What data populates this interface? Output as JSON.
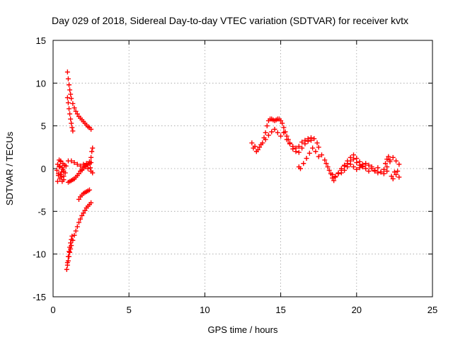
{
  "chart_data": {
    "type": "scatter",
    "title": "Day 029 of 2018, Sidereal Day-to-day VTEC variation (SDTVAR) for receiver kvtx",
    "xlabel": "GPS time / hours",
    "ylabel": "SDTVAR / TECUs",
    "xlim": [
      0,
      25
    ],
    "ylim": [
      -15,
      15
    ],
    "xticks": [
      0,
      5,
      10,
      15,
      20,
      25
    ],
    "yticks": [
      -15,
      -10,
      -5,
      0,
      5,
      10,
      15
    ],
    "grid": true,
    "marker": "plus",
    "series_color": "#ff0000",
    "series": [
      {
        "x": [
          0.25,
          0.3,
          0.35,
          0.4,
          0.45,
          0.5,
          0.55,
          0.6,
          0.65,
          0.7,
          0.35,
          0.45,
          0.55,
          0.65,
          0.75,
          0.4,
          0.5,
          0.6,
          0.7,
          0.8,
          0.85,
          0.3,
          0.5,
          0.7
        ],
        "y": [
          -0.2,
          0.5,
          -0.8,
          0.2,
          -1.2,
          0.8,
          -0.4,
          -1.5,
          0.6,
          -0.3,
          -0.6,
          0.3,
          -1.0,
          -0.1,
          0.4,
          1.0,
          -0.7,
          0.1,
          -1.3,
          -0.5,
          0.3,
          -1.5,
          0.9,
          -0.9
        ]
      },
      {
        "x": [
          0.95,
          1.0,
          1.05,
          1.1,
          1.15,
          1.2,
          1.3,
          1.4,
          1.5,
          1.6,
          1.7,
          1.8,
          1.9,
          2.0,
          2.1,
          2.2,
          2.3,
          2.4,
          2.5
        ],
        "y": [
          11.3,
          10.5,
          9.8,
          9.2,
          8.7,
          8.2,
          7.6,
          7.1,
          6.7,
          6.4,
          6.1,
          5.9,
          5.7,
          5.5,
          5.3,
          5.1,
          4.9,
          4.8,
          4.6
        ]
      },
      {
        "x": [
          0.95,
          1.0,
          1.05,
          1.1,
          1.15,
          1.2,
          1.25,
          1.3
        ],
        "y": [
          8.3,
          7.7,
          7.0,
          6.4,
          5.8,
          5.3,
          4.8,
          4.4
        ]
      },
      {
        "x": [
          1.0,
          1.1,
          1.2,
          1.3,
          1.4,
          1.5,
          1.6,
          1.7,
          1.8,
          1.9,
          2.0,
          2.1,
          2.2,
          2.3,
          2.4,
          2.5
        ],
        "y": [
          -1.6,
          -1.5,
          -1.4,
          -1.3,
          -1.2,
          -1.0,
          -0.8,
          -0.6,
          -0.3,
          -0.1,
          0.1,
          0.3,
          0.4,
          0.5,
          0.6,
          0.7
        ]
      },
      {
        "x": [
          1.0,
          1.2,
          1.4,
          1.6,
          1.8,
          2.0,
          2.2,
          2.4,
          2.5,
          2.55,
          2.6,
          2.45,
          2.5,
          2.6,
          1.9,
          2.1,
          2.3
        ],
        "y": [
          0.9,
          0.9,
          0.7,
          0.5,
          0.3,
          0.5,
          0.6,
          0.8,
          1.3,
          2.0,
          2.4,
          0.1,
          -0.3,
          -0.5,
          -0.2,
          0.2,
          0.0
        ]
      },
      {
        "x": [
          1.7,
          1.8,
          1.9,
          2.0,
          2.1,
          2.2,
          2.3,
          2.4
        ],
        "y": [
          -3.6,
          -3.3,
          -3.1,
          -2.9,
          -2.8,
          -2.7,
          -2.6,
          -2.5
        ]
      },
      {
        "x": [
          0.9,
          0.95,
          1.0,
          1.05,
          1.1,
          1.15,
          1.2,
          1.3,
          1.4,
          1.5,
          1.6,
          1.7,
          1.8,
          1.9,
          2.0,
          2.1,
          2.2,
          2.3,
          2.4,
          2.5
        ],
        "y": [
          -11.8,
          -11.3,
          -10.8,
          -10.3,
          -9.8,
          -9.4,
          -9.0,
          -8.4,
          -7.8,
          -7.3,
          -6.8,
          -6.3,
          -5.9,
          -5.5,
          -5.2,
          -4.9,
          -4.6,
          -4.4,
          -4.2,
          -4.0
        ]
      },
      {
        "x": [
          0.95,
          1.0,
          1.05,
          1.1,
          1.15,
          1.2,
          1.25
        ],
        "y": [
          -11.0,
          -10.3,
          -9.7,
          -9.2,
          -8.7,
          -8.3,
          -7.9
        ]
      },
      {
        "x": [
          13.1,
          13.3,
          13.5,
          13.7,
          13.9,
          14.0,
          14.1,
          14.2,
          14.3,
          14.4,
          14.5,
          14.6,
          14.7,
          14.8,
          14.9,
          15.0,
          15.1,
          15.2,
          15.3,
          15.4,
          15.5,
          15.6,
          15.8,
          16.0,
          16.2,
          16.4,
          16.6,
          16.8,
          17.0,
          17.2,
          17.4,
          17.5
        ],
        "y": [
          3.0,
          2.6,
          2.2,
          2.8,
          3.6,
          4.2,
          5.0,
          5.6,
          5.8,
          5.8,
          5.7,
          5.6,
          5.7,
          5.8,
          5.8,
          5.6,
          5.3,
          4.8,
          4.3,
          3.8,
          3.4,
          3.0,
          2.6,
          2.4,
          2.6,
          3.1,
          3.3,
          3.5,
          3.6,
          3.5,
          3.0,
          2.5
        ]
      },
      {
        "x": [
          13.2,
          13.4,
          13.6,
          13.8,
          14.0,
          14.2,
          14.4,
          14.6,
          14.8,
          15.0,
          15.2,
          15.4,
          15.6,
          15.8,
          16.0,
          16.2,
          16.4,
          16.6,
          16.8,
          17.0
        ],
        "y": [
          2.4,
          2.0,
          2.5,
          3.0,
          3.4,
          3.9,
          4.3,
          4.6,
          4.2,
          3.8,
          4.2,
          3.4,
          2.9,
          2.3,
          2.0,
          1.9,
          2.4,
          2.9,
          3.2,
          3.3
        ]
      },
      {
        "x": [
          16.2,
          16.3,
          16.5,
          16.7,
          16.9,
          17.1,
          17.3,
          17.5,
          17.7,
          17.9,
          18.1,
          18.3,
          18.4,
          18.5,
          18.6,
          18.8,
          19.0,
          19.2,
          19.4,
          19.6,
          19.8,
          20.0,
          20.2,
          20.4
        ],
        "y": [
          0.2,
          0.0,
          0.6,
          1.2,
          1.8,
          2.4,
          2.0,
          1.4,
          1.6,
          1.0,
          0.2,
          -0.6,
          -1.1,
          -1.4,
          -1.0,
          -0.6,
          -0.2,
          0.4,
          0.9,
          1.3,
          1.6,
          1.2,
          0.8,
          0.5
        ]
      },
      {
        "x": [
          18.0,
          18.2,
          18.4,
          18.6,
          18.8,
          19.0,
          19.2,
          19.4,
          19.6,
          19.8,
          20.0,
          20.2,
          20.4,
          20.6,
          20.8,
          21.0,
          21.2,
          21.4,
          21.6,
          21.8,
          22.0
        ],
        "y": [
          0.6,
          -0.2,
          -0.7,
          -0.9,
          -0.5,
          0.0,
          0.3,
          0.6,
          0.9,
          1.1,
          0.7,
          0.4,
          0.2,
          0.6,
          0.4,
          0.0,
          -0.3,
          -0.5,
          -0.4,
          -0.6,
          -0.3
        ]
      },
      {
        "x": [
          19.0,
          19.2,
          19.4,
          19.6,
          19.8,
          20.0,
          20.2,
          20.4,
          20.6,
          20.8,
          21.0,
          21.2,
          21.4,
          21.6,
          21.8,
          22.0,
          22.2,
          22.4,
          22.6,
          22.8
        ],
        "y": [
          -0.5,
          -0.2,
          0.2,
          0.5,
          0.2,
          -0.1,
          0.1,
          0.3,
          0.0,
          -0.3,
          0.2,
          -0.2,
          0.1,
          -0.4,
          -0.1,
          0.2,
          0.8,
          1.3,
          0.9,
          0.5
        ]
      },
      {
        "x": [
          21.9,
          22.0,
          22.1,
          22.2,
          22.3,
          22.4,
          22.5,
          22.6,
          22.7,
          22.8
        ],
        "y": [
          0.6,
          1.1,
          1.4,
          1.0,
          -0.9,
          -1.2,
          -0.4,
          -0.7,
          -0.3,
          -1.0
        ]
      }
    ]
  }
}
